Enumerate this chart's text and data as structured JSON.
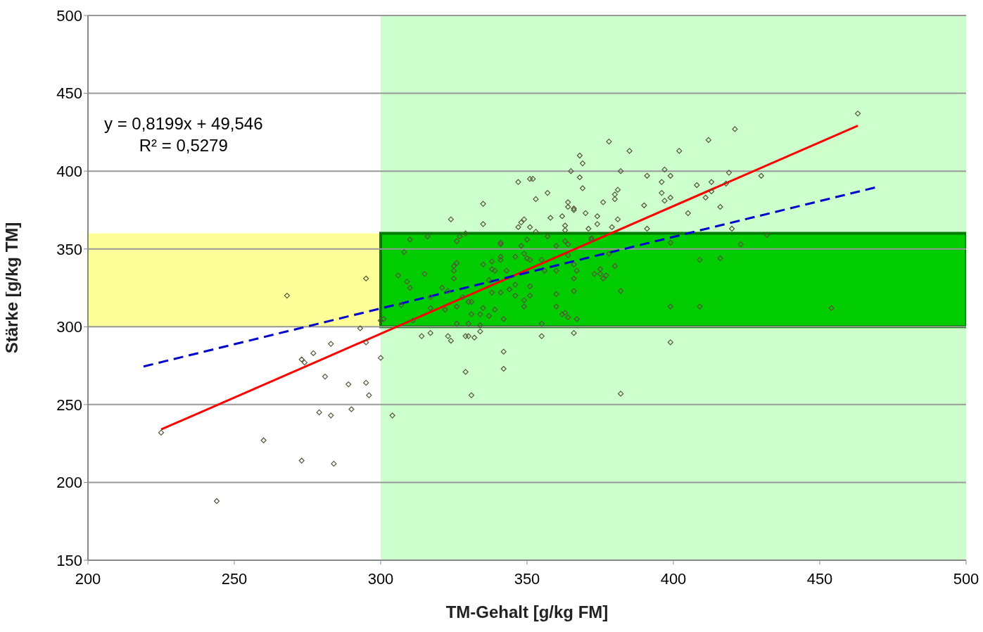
{
  "chart_data": {
    "type": "scatter",
    "xlabel": "TM-Gehalt [g/kg FM]",
    "ylabel": "Stärke [g/kg TM]",
    "xlim": [
      200,
      500
    ],
    "xticks": [
      200,
      250,
      300,
      350,
      400,
      450,
      500
    ],
    "ylim": [
      150,
      500
    ],
    "yticks": [
      150,
      200,
      250,
      300,
      350,
      400,
      450,
      500
    ],
    "grid": "y",
    "legend": false,
    "annotations": [
      "y = 0,8199x + 49,546",
      "R² = 0,5279"
    ],
    "bands": [
      {
        "axis": "x",
        "from": 300,
        "to": 500,
        "color": "#ccffcc"
      },
      {
        "axis": "y",
        "from": 300,
        "to": 360,
        "color": "#ffff99"
      },
      {
        "axis": "y",
        "from": 300,
        "to": 360,
        "color": "#00cc00"
      }
    ],
    "series": [
      {
        "marker": "diamond",
        "color": "#55553a",
        "x": [
          225,
          244,
          260,
          268,
          273,
          273,
          274,
          277,
          279,
          281,
          283,
          283,
          284,
          289,
          290,
          293,
          295,
          295,
          295,
          296,
          300,
          300,
          304,
          316,
          326,
          327,
          329,
          308,
          306,
          309,
          310,
          317,
          307,
          311,
          301,
          315,
          317,
          321,
          322,
          323,
          325,
          326,
          325,
          325,
          326,
          330,
          331,
          331,
          328,
          326,
          330,
          334,
          334,
          335,
          337,
          339,
          335,
          338,
          339,
          343,
          338,
          337,
          338,
          341,
          341,
          341,
          341,
          341,
          342,
          344,
          346,
          346,
          346,
          348,
          349,
          351,
          350,
          350,
          351,
          351,
          349,
          349,
          355,
          355,
          357,
          356,
          360,
          360,
          360,
          360,
          362,
          364,
          363,
          363,
          364,
          364,
          366,
          367,
          366,
          366,
          367,
          372,
          373,
          375,
          375,
          376,
          377,
          380,
          382,
          399,
          399,
          378,
          372,
          310,
          314,
          323,
          324,
          329,
          330,
          332,
          334,
          355,
          366,
          399,
          317,
          342,
          342,
          329,
          331,
          382,
          378,
          385,
          368,
          369,
          382,
          365,
          368,
          351,
          352,
          369,
          381,
          347,
          357,
          353,
          335,
          364,
          364,
          366,
          366,
          362,
          374,
          380,
          380,
          376,
          370,
          381,
          358,
          324,
          348,
          349,
          335,
          351,
          347,
          363,
          363,
          353,
          371,
          374,
          379,
          390,
          391,
          396,
          397,
          396,
          397,
          399,
          399,
          391,
          463,
          421,
          412,
          402,
          419,
          430,
          413,
          408,
          418,
          411,
          413,
          405,
          416,
          420,
          432,
          423,
          409,
          416,
          409,
          454
        ],
        "values": [
          232,
          188,
          227,
          320,
          214,
          279,
          277,
          283,
          245,
          268,
          243,
          289,
          212,
          263,
          247,
          299,
          331,
          290,
          264,
          256,
          280,
          304,
          243,
          358,
          355,
          358,
          360,
          348,
          333,
          329,
          325,
          319,
          314,
          304,
          305,
          334,
          312,
          325,
          311,
          323,
          339,
          341,
          336,
          331,
          313,
          316,
          316,
          308,
          319,
          302,
          302,
          301,
          308,
          312,
          307,
          311,
          340,
          342,
          336,
          336,
          337,
          330,
          322,
          322,
          345,
          343,
          354,
          353,
          305,
          324,
          327,
          320,
          345,
          352,
          347,
          343,
          344,
          356,
          326,
          320,
          317,
          313,
          302,
          343,
          358,
          336,
          321,
          352,
          336,
          313,
          308,
          306,
          309,
          355,
          353,
          346,
          340,
          336,
          331,
          323,
          305,
          357,
          334,
          337,
          334,
          331,
          333,
          339,
          323,
          313,
          354,
          347,
          356,
          356,
          294,
          294,
          291,
          294,
          294,
          293,
          297,
          294,
          296,
          290,
          296,
          273,
          284,
          271,
          256,
          257,
          419,
          413,
          410,
          405,
          400,
          400,
          396,
          395,
          395,
          389,
          388,
          393,
          386,
          382,
          379,
          377,
          380,
          376,
          375,
          371,
          371,
          385,
          382,
          380,
          373,
          369,
          370,
          369,
          367,
          369,
          366,
          364,
          364,
          365,
          362,
          361,
          363,
          366,
          364,
          378,
          397,
          393,
          401,
          386,
          381,
          383,
          397,
          363,
          437,
          427,
          420,
          413,
          399,
          397,
          393,
          391,
          392,
          383,
          387,
          373,
          377,
          363,
          359,
          353,
          343,
          344,
          313,
          312
        ]
      },
      {
        "type": "line",
        "color": "#ff0000",
        "line_style": "solid",
        "x": [
          225,
          463
        ],
        "values": [
          234,
          429.2
        ]
      },
      {
        "type": "line",
        "color": "#0000cc",
        "line_style": "dashed",
        "x": [
          219,
          469
        ],
        "values": [
          274.5,
          389.5
        ]
      }
    ]
  }
}
